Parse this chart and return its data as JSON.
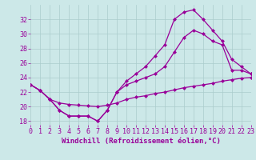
{
  "xlabel": "Windchill (Refroidissement éolien,°C)",
  "x": [
    0,
    1,
    2,
    3,
    4,
    5,
    6,
    7,
    8,
    9,
    10,
    11,
    12,
    13,
    14,
    15,
    16,
    17,
    18,
    19,
    20,
    21,
    22,
    23
  ],
  "line1": [
    23.0,
    22.2,
    21.0,
    19.5,
    18.7,
    18.7,
    18.7,
    18.0,
    19.5,
    22.0,
    23.5,
    24.5,
    25.5,
    27.0,
    28.5,
    32.0,
    33.0,
    33.3,
    32.0,
    30.5,
    29.0,
    26.5,
    25.5,
    24.5
  ],
  "line2": [
    23.0,
    22.2,
    21.0,
    19.5,
    18.7,
    18.7,
    18.7,
    18.0,
    19.5,
    22.0,
    23.0,
    23.5,
    24.0,
    24.5,
    25.5,
    27.5,
    29.5,
    30.5,
    30.0,
    29.0,
    28.5,
    25.0,
    25.0,
    24.5
  ],
  "line3": [
    23.0,
    22.2,
    21.0,
    20.5,
    20.3,
    20.2,
    20.1,
    20.0,
    20.2,
    20.5,
    21.0,
    21.3,
    21.5,
    21.8,
    22.0,
    22.3,
    22.6,
    22.8,
    23.0,
    23.2,
    23.5,
    23.7,
    23.9,
    24.0
  ],
  "line_color": "#990099",
  "bg_color": "#cce8e8",
  "grid_color": "#aacccc",
  "ylim": [
    17.5,
    34
  ],
  "yticks": [
    18,
    20,
    22,
    24,
    26,
    28,
    30,
    32
  ],
  "xlim": [
    0,
    23
  ],
  "tick_fontsize": 6,
  "label_fontsize": 6.5
}
